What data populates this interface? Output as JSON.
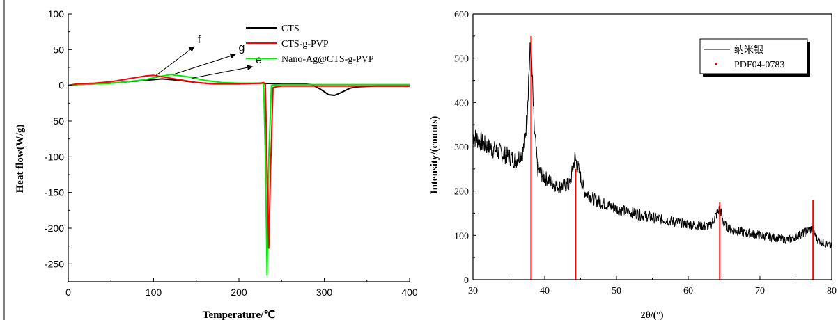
{
  "chart_data": [
    {
      "type": "line",
      "xlabel": "Temperature/℃",
      "ylabel": "Heat flow(W/g)",
      "xlim": [
        0,
        400
      ],
      "ylim": [
        -275,
        100
      ],
      "xticks": [
        "0",
        "100",
        "200",
        "300",
        "400"
      ],
      "yticks": [
        "100",
        "50",
        "0",
        "-50",
        "-100",
        "-150",
        "-200",
        "-250"
      ],
      "grid": false,
      "legend_position": "top-right",
      "series": [
        {
          "name": "CTS",
          "color": "#000000",
          "x": [
            0,
            10,
            30,
            50,
            70,
            90,
            110,
            130,
            150,
            170,
            200,
            225,
            250,
            275,
            285,
            295,
            305,
            312,
            320,
            330,
            340,
            360,
            400
          ],
          "y": [
            0,
            1,
            2,
            3,
            5,
            7,
            9,
            7,
            4,
            2,
            2,
            3,
            2,
            2,
            1,
            -5,
            -13,
            -14,
            -10,
            -4,
            -2,
            -1,
            -1
          ]
        },
        {
          "name": "CTS-g-PVP",
          "color": "#ff0000",
          "x": [
            0,
            10,
            30,
            50,
            70,
            90,
            100,
            110,
            130,
            150,
            170,
            200,
            225,
            229,
            231,
            233,
            235,
            237,
            240,
            250,
            300,
            350,
            400
          ],
          "y": [
            0,
            2,
            3,
            5,
            9,
            13,
            14,
            12,
            8,
            4,
            2,
            2,
            3,
            4,
            1,
            -120,
            -228,
            -120,
            -3,
            -1,
            -1,
            -1,
            -1
          ]
        },
        {
          "name": "Nano-Ag@CTS-g-PVP",
          "color": "#00ee00",
          "x": [
            0,
            10,
            30,
            50,
            70,
            90,
            110,
            120,
            140,
            160,
            180,
            200,
            226,
            229,
            231,
            233,
            235,
            238,
            250,
            300,
            350,
            400
          ],
          "y": [
            0,
            1,
            2,
            3,
            5,
            8,
            13,
            15,
            12,
            7,
            4,
            3,
            3,
            2,
            -100,
            -266,
            -100,
            0,
            1,
            1,
            1,
            1
          ]
        }
      ],
      "annotations": [
        {
          "text": "f",
          "x": 150,
          "y": 58
        },
        {
          "text": "g",
          "x": 198,
          "y": 47
        },
        {
          "text": "e",
          "x": 218,
          "y": 30
        }
      ]
    },
    {
      "type": "line",
      "xlabel": "2θ/(°)",
      "ylabel": "Intensity/(counts)",
      "xlim": [
        30,
        80
      ],
      "ylim": [
        0,
        600
      ],
      "xticks": [
        "30",
        "40",
        "50",
        "60",
        "70",
        "80"
      ],
      "yticks": [
        "0",
        "100",
        "200",
        "300",
        "400",
        "500",
        "600"
      ],
      "grid": false,
      "legend_position": "top-right",
      "series": [
        {
          "name": "纳米银",
          "color": "#000000",
          "x": [
            30,
            32,
            34,
            36,
            37,
            37.5,
            37.8,
            38.0,
            38.2,
            38.5,
            39,
            40,
            42,
            43.5,
            44.2,
            44.6,
            45.5,
            47,
            50,
            55,
            60,
            63,
            64.4,
            65,
            66,
            70,
            74,
            77.3,
            78,
            80
          ],
          "y": [
            325,
            300,
            285,
            270,
            290,
            360,
            470,
            520,
            480,
            350,
            250,
            230,
            210,
            215,
            275,
            255,
            200,
            180,
            160,
            140,
            125,
            120,
            160,
            125,
            112,
            100,
            90,
            115,
            90,
            75
          ]
        },
        {
          "name": "PDF04-0783",
          "color": "#ff0000",
          "type": "bar",
          "x": [
            38.1,
            44.3,
            64.4,
            77.4
          ],
          "y": [
            550,
            250,
            175,
            180
          ]
        }
      ]
    }
  ]
}
